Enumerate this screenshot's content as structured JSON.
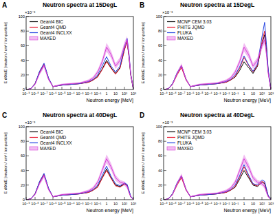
{
  "chart_data": [
    {
      "type": "line",
      "panel_label": "A",
      "title": "Neutron spectra at 15DegL",
      "y_multiplier": "×10⁻³",
      "x_label": "Neutron energy [MeV]",
      "y_label": "E dΦ/dE [neutron / cm² / ion particle]",
      "log": "x",
      "grid": false,
      "legend": "upper left",
      "xlim": [
        1e-09,
        1000
      ],
      "ylim": [
        0,
        100
      ],
      "xticks": [
        {
          "value": 1e-09,
          "label": "10⁻⁹"
        },
        {
          "value": 1e-08,
          "label": "10⁻⁸"
        },
        {
          "value": 1e-07,
          "label": "10⁻⁷"
        },
        {
          "value": 1e-06,
          "label": "10⁻⁶"
        },
        {
          "value": 1e-05,
          "label": "10⁻⁵"
        },
        {
          "value": 0.0001,
          "label": "10⁻⁴"
        },
        {
          "value": 0.001,
          "label": "10⁻³"
        },
        {
          "value": 0.01,
          "label": "10⁻²"
        },
        {
          "value": 0.1,
          "label": "10⁻¹"
        },
        1,
        10,
        {
          "value": 100,
          "label": "10²"
        },
        {
          "value": 1000,
          "label": "10³"
        }
      ],
      "yticks": [
        0,
        20,
        40,
        60,
        80,
        100
      ],
      "x": [
        1e-09,
        3.2e-09,
        1e-08,
        3.2e-08,
        1e-07,
        3.2e-07,
        1e-06,
        1e-05,
        0.0001,
        0.001,
        0.01,
        0.032,
        0.1,
        0.32,
        1,
        3.2,
        10,
        32,
        100,
        200,
        320,
        500,
        1000
      ],
      "series": [
        {
          "name": "Geant4 BIC",
          "color": "#000000",
          "values": [
            0,
            1,
            8,
            24,
            35,
            15,
            4,
            6,
            7,
            8,
            10,
            13,
            18,
            28,
            40,
            30,
            22,
            30,
            55,
            65,
            45,
            20,
            0
          ]
        },
        {
          "name": "Geant4 QMD",
          "color": "#e8132a",
          "values": [
            0,
            1,
            8,
            24,
            34,
            15,
            4,
            6,
            7,
            8,
            10,
            13,
            17,
            27,
            38,
            29,
            21,
            29,
            54,
            66,
            46,
            21,
            0
          ]
        },
        {
          "name": "Geant4 INCLXX",
          "color": "#1f3fe0",
          "values": [
            0,
            1,
            8,
            25,
            36,
            16,
            4,
            6,
            7,
            8,
            11,
            14,
            20,
            32,
            45,
            32,
            24,
            32,
            58,
            70,
            50,
            22,
            0
          ]
        },
        {
          "name": "MAXED",
          "type": "band",
          "color": "#d63fd6",
          "values": [
            0,
            1,
            7,
            22,
            33,
            14,
            4,
            7,
            8,
            9,
            12,
            16,
            24,
            38,
            58,
            48,
            32,
            40,
            60,
            68,
            48,
            22,
            0
          ],
          "error": [
            0,
            0,
            1,
            2,
            3,
            2,
            1,
            1,
            1,
            1,
            2,
            2,
            3,
            4,
            6,
            5,
            4,
            4,
            5,
            5,
            4,
            3,
            0
          ]
        }
      ]
    },
    {
      "type": "line",
      "panel_label": "B",
      "title": "Neutron spectra at 15DegL",
      "y_multiplier": "×10⁻³",
      "x_label": "Neutron energy [MeV]",
      "y_label": "E dΦ/dE [neutron / cm² / ion particle]",
      "log": "x",
      "grid": false,
      "legend": "upper left",
      "xlim": [
        1e-09,
        1000
      ],
      "ylim": [
        0,
        100
      ],
      "xticks": [
        {
          "value": 1e-09,
          "label": "10⁻⁹"
        },
        {
          "value": 1e-08,
          "label": "10⁻⁸"
        },
        {
          "value": 1e-07,
          "label": "10⁻⁷"
        },
        {
          "value": 1e-06,
          "label": "10⁻⁶"
        },
        {
          "value": 1e-05,
          "label": "10⁻⁵"
        },
        {
          "value": 0.0001,
          "label": "10⁻⁴"
        },
        {
          "value": 0.001,
          "label": "10⁻³"
        },
        {
          "value": 0.01,
          "label": "10⁻²"
        },
        {
          "value": 0.1,
          "label": "10⁻¹"
        },
        1,
        10,
        {
          "value": 100,
          "label": "10²"
        },
        {
          "value": 1000,
          "label": "10³"
        }
      ],
      "yticks": [
        0,
        20,
        40,
        60,
        80,
        100
      ],
      "x": [
        1e-09,
        3.2e-09,
        1e-08,
        3.2e-08,
        1e-07,
        3.2e-07,
        1e-06,
        1e-05,
        0.0001,
        0.001,
        0.01,
        0.032,
        0.1,
        0.32,
        1,
        3.2,
        10,
        32,
        100,
        200,
        320,
        500,
        1000
      ],
      "series": [
        {
          "name": "MCNP CEM 3.03",
          "color": "#000000",
          "values": [
            0,
            1,
            8,
            22,
            32,
            14,
            4,
            6,
            7,
            8,
            10,
            13,
            17,
            26,
            38,
            30,
            22,
            32,
            62,
            75,
            55,
            25,
            0
          ]
        },
        {
          "name": "PHITS JQMD",
          "color": "#e8132a",
          "values": [
            0,
            1,
            7,
            20,
            30,
            13,
            4,
            6,
            7,
            8,
            10,
            13,
            18,
            29,
            44,
            33,
            24,
            33,
            65,
            80,
            58,
            26,
            0
          ]
        },
        {
          "name": "FLUKA",
          "color": "#1f3fe0",
          "values": [
            0,
            1,
            8,
            23,
            33,
            14,
            4,
            6,
            7,
            8,
            11,
            14,
            20,
            31,
            46,
            34,
            25,
            35,
            72,
            92,
            62,
            28,
            0
          ]
        },
        {
          "name": "MAXED",
          "type": "band",
          "color": "#d63fd6",
          "values": [
            0,
            1,
            7,
            22,
            33,
            14,
            4,
            7,
            8,
            9,
            12,
            16,
            24,
            38,
            58,
            48,
            32,
            40,
            60,
            68,
            48,
            22,
            0
          ],
          "error": [
            0,
            0,
            1,
            2,
            3,
            2,
            1,
            1,
            1,
            1,
            2,
            2,
            3,
            4,
            6,
            5,
            4,
            4,
            5,
            5,
            4,
            3,
            0
          ]
        }
      ]
    },
    {
      "type": "line",
      "panel_label": "C",
      "title": "Neutron spectra at 40DegL",
      "y_multiplier": "×10⁻³",
      "x_label": "Neutron energy [MeV]",
      "y_label": "E dΦ/dE [neutron / cm² / ion particle]",
      "log": "x",
      "grid": false,
      "legend": "upper left",
      "xlim": [
        1e-09,
        1000
      ],
      "ylim": [
        0,
        100
      ],
      "xticks": [
        {
          "value": 1e-09,
          "label": "10⁻⁹"
        },
        {
          "value": 1e-08,
          "label": "10⁻⁸"
        },
        {
          "value": 1e-07,
          "label": "10⁻⁷"
        },
        {
          "value": 1e-06,
          "label": "10⁻⁶"
        },
        {
          "value": 1e-05,
          "label": "10⁻⁵"
        },
        {
          "value": 0.0001,
          "label": "10⁻⁴"
        },
        {
          "value": 0.001,
          "label": "10⁻³"
        },
        {
          "value": 0.01,
          "label": "10⁻²"
        },
        {
          "value": 0.1,
          "label": "10⁻¹"
        },
        1,
        10,
        {
          "value": 100,
          "label": "10²"
        },
        {
          "value": 1000,
          "label": "10³"
        }
      ],
      "yticks": [
        0,
        20,
        40,
        60,
        80,
        100
      ],
      "x": [
        1e-09,
        3.2e-09,
        1e-08,
        3.2e-08,
        1e-07,
        3.2e-07,
        1e-06,
        1e-05,
        0.0001,
        0.001,
        0.01,
        0.032,
        0.1,
        0.32,
        1,
        3.2,
        10,
        32,
        100,
        200,
        320,
        500,
        1000
      ],
      "series": [
        {
          "name": "Geant4 BIC",
          "color": "#000000",
          "values": [
            0,
            1,
            8,
            24,
            35,
            15,
            4,
            6,
            7,
            8,
            10,
            13,
            18,
            30,
            42,
            30,
            20,
            18,
            22,
            20,
            12,
            4,
            0
          ]
        },
        {
          "name": "Geant4 QMD",
          "color": "#e8132a",
          "values": [
            0,
            1,
            8,
            24,
            34,
            15,
            4,
            6,
            7,
            8,
            10,
            13,
            17,
            29,
            40,
            29,
            19,
            17,
            21,
            19,
            11,
            4,
            0
          ]
        },
        {
          "name": "Geant4 INCLXX",
          "color": "#1f3fe0",
          "values": [
            0,
            1,
            8,
            25,
            36,
            16,
            4,
            6,
            7,
            8,
            11,
            14,
            20,
            33,
            46,
            32,
            22,
            19,
            23,
            21,
            13,
            5,
            0
          ]
        },
        {
          "name": "MAXED",
          "type": "band",
          "color": "#d63fd6",
          "values": [
            0,
            1,
            7,
            22,
            33,
            14,
            4,
            7,
            8,
            9,
            12,
            16,
            24,
            40,
            56,
            45,
            30,
            24,
            22,
            18,
            10,
            4,
            0
          ],
          "error": [
            0,
            0,
            1,
            2,
            3,
            2,
            1,
            1,
            1,
            1,
            2,
            2,
            3,
            4,
            6,
            5,
            4,
            3,
            3,
            3,
            2,
            1,
            0
          ]
        }
      ]
    },
    {
      "type": "line",
      "panel_label": "D",
      "title": "Neutron spectra at 40DegL",
      "y_multiplier": "×10⁻³",
      "x_label": "Neutron energy [MeV]",
      "y_label": "E dΦ/dE [neutron / cm² / ion particle]",
      "log": "x",
      "grid": false,
      "legend": "upper left",
      "xlim": [
        1e-09,
        1000
      ],
      "ylim": [
        0,
        100
      ],
      "xticks": [
        {
          "value": 1e-09,
          "label": "10⁻⁹"
        },
        {
          "value": 1e-08,
          "label": "10⁻⁸"
        },
        {
          "value": 1e-07,
          "label": "10⁻⁷"
        },
        {
          "value": 1e-06,
          "label": "10⁻⁶"
        },
        {
          "value": 1e-05,
          "label": "10⁻⁵"
        },
        {
          "value": 0.0001,
          "label": "10⁻⁴"
        },
        {
          "value": 0.001,
          "label": "10⁻³"
        },
        {
          "value": 0.01,
          "label": "10⁻²"
        },
        {
          "value": 0.1,
          "label": "10⁻¹"
        },
        1,
        10,
        {
          "value": 100,
          "label": "10²"
        },
        {
          "value": 1000,
          "label": "10³"
        }
      ],
      "yticks": [
        0,
        20,
        40,
        60,
        80,
        100
      ],
      "x": [
        1e-09,
        3.2e-09,
        1e-08,
        3.2e-08,
        1e-07,
        3.2e-07,
        1e-06,
        1e-05,
        0.0001,
        0.001,
        0.01,
        0.032,
        0.1,
        0.32,
        1,
        3.2,
        10,
        32,
        100,
        200,
        320,
        500,
        1000
      ],
      "series": [
        {
          "name": "MCNP CEM 3.03",
          "color": "#000000",
          "values": [
            0,
            1,
            8,
            22,
            32,
            14,
            4,
            6,
            7,
            8,
            10,
            13,
            17,
            28,
            40,
            30,
            20,
            18,
            24,
            22,
            13,
            5,
            0
          ]
        },
        {
          "name": "PHITS JQMD",
          "color": "#e8132a",
          "values": [
            0,
            1,
            7,
            20,
            30,
            13,
            4,
            6,
            7,
            8,
            10,
            13,
            18,
            31,
            45,
            32,
            21,
            19,
            25,
            23,
            14,
            5,
            0
          ]
        },
        {
          "name": "FLUKA",
          "color": "#1f3fe0",
          "values": [
            0,
            1,
            8,
            23,
            33,
            14,
            4,
            6,
            7,
            8,
            11,
            14,
            20,
            33,
            48,
            34,
            22,
            20,
            27,
            25,
            15,
            6,
            0
          ]
        },
        {
          "name": "MAXED",
          "type": "band",
          "color": "#d63fd6",
          "values": [
            0,
            1,
            7,
            22,
            33,
            14,
            4,
            7,
            8,
            9,
            12,
            16,
            24,
            40,
            56,
            45,
            30,
            24,
            22,
            18,
            10,
            4,
            0
          ],
          "error": [
            0,
            0,
            1,
            2,
            3,
            2,
            1,
            1,
            1,
            1,
            2,
            2,
            3,
            4,
            6,
            5,
            4,
            3,
            3,
            3,
            2,
            1,
            0
          ]
        }
      ]
    }
  ]
}
